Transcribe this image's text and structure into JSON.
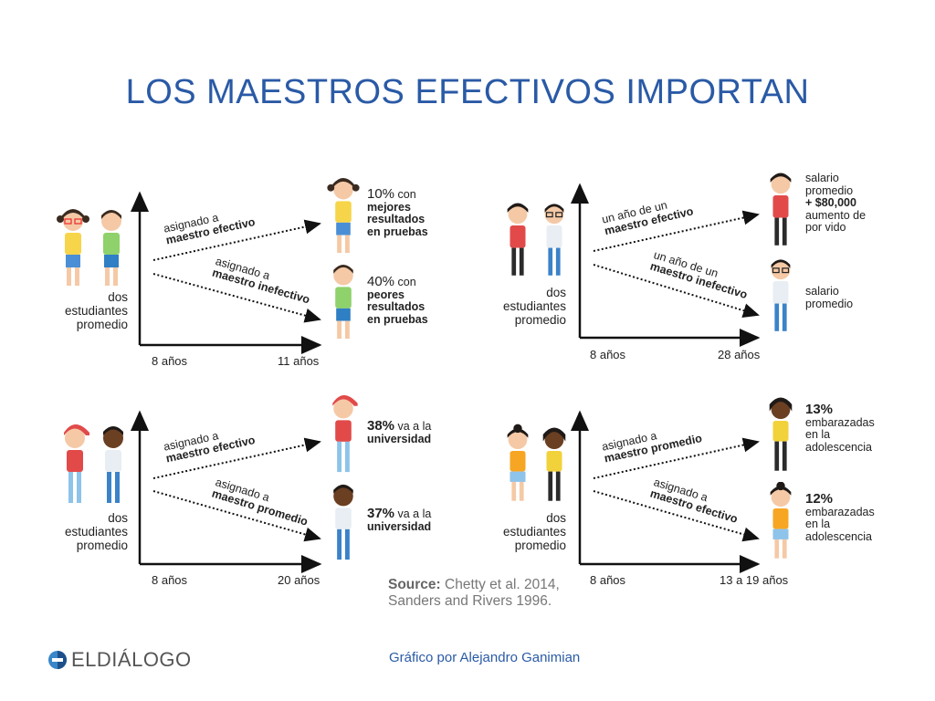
{
  "title": "LOS MAESTROS EFECTIVOS IMPORTAN",
  "panels": [
    {
      "start_label": "dos estudiantes promedio",
      "x_start": "8 años",
      "x_end": "11 años",
      "upper_arrow": {
        "line1": "asignado a",
        "line2": "maestro efectivo"
      },
      "lower_arrow": {
        "line1": "asignado a",
        "line2": "maestro inefectivo"
      },
      "upper_outcome": {
        "pct": "10%",
        "text1": " con",
        "bold2": "mejores",
        "bold3": "resultados",
        "bold4": "en pruebas"
      },
      "lower_outcome": {
        "pct": "40%",
        "text1": " con",
        "bold2": "peores",
        "bold3": "resultados",
        "bold4": "en pruebas"
      }
    },
    {
      "start_label": "dos estudiantes promedio",
      "x_start": "8 años",
      "x_end": "28 años",
      "upper_arrow": {
        "line1": "un año de un",
        "line2": "maestro efectivo"
      },
      "lower_arrow": {
        "line1": "un año de un",
        "line2": "maestro inefectivo"
      },
      "upper_outcome": {
        "line1": "salario",
        "line2": "promedio",
        "bold3": "+ $80,000",
        "line4": "aumento de",
        "line5": "por vido"
      },
      "lower_outcome": {
        "line1": "salario",
        "line2": "promedio"
      }
    },
    {
      "start_label": "dos estudiantes promedio",
      "x_start": "8 años",
      "x_end": "20 años",
      "upper_arrow": {
        "line1": "asignado a",
        "line2": "maestro efectivo"
      },
      "lower_arrow": {
        "line1": "asignado a",
        "line2": "maestro promedio"
      },
      "upper_outcome": {
        "pct": "38%",
        "text1": " va a la",
        "bold2": "universidad"
      },
      "lower_outcome": {
        "pct": "37%",
        "text1": " va a la",
        "bold2": "universidad"
      }
    },
    {
      "start_label": "dos estudiantes promedio",
      "x_start": "8 años",
      "x_end": "13 a 19 años",
      "upper_arrow": {
        "line1": "asignado a",
        "line2": "maestro promedio"
      },
      "lower_arrow": {
        "line1": "asignado a",
        "line2": "maestro efectivo"
      },
      "upper_outcome": {
        "pct": "13%",
        "line2": "embarazadas",
        "line3": "en la",
        "line4": "adolescencia"
      },
      "lower_outcome": {
        "pct": "12%",
        "line2": "embarazadas",
        "line3": "en la",
        "line4": "adolescencia"
      }
    }
  ],
  "source": {
    "label": "Source:",
    "line1": " Chetty et al. 2014,",
    "line2": "Sanders and Rivers 1996."
  },
  "logo": "ELDIÁLOGO",
  "credit": "Gráfico por Alejandro Ganimian",
  "colors": {
    "title": "#2a5aa6",
    "axis": "#111111",
    "skin": "#f5c9a6",
    "dark_skin": "#6b3f22"
  },
  "icons": [
    "student-figure",
    "teacher-figure",
    "logo-mark-icon"
  ]
}
